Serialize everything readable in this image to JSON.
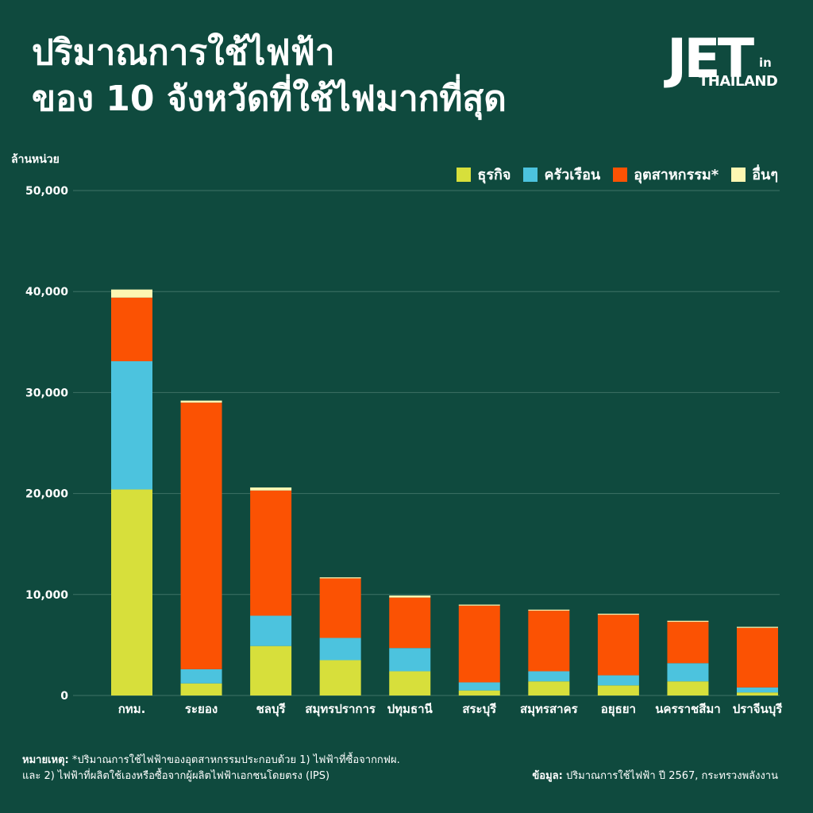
{
  "title": {
    "line1": "ปริมาณการใช้ไฟฟ้า",
    "line2": "ของ 10 จังหวัดที่ใช้ไฟมากที่สุด"
  },
  "logo": {
    "main": "JET",
    "in": "in",
    "sub": "THAILAND"
  },
  "colors": {
    "background": "#0f4a3e",
    "business": "#d7df3b",
    "household": "#4cc3de",
    "industry": "#fb5203",
    "other": "#fdf7b2",
    "grid": "#3f7266"
  },
  "chart_data": {
    "type": "bar",
    "stacked": true,
    "ylabel": "ล้านหน่วย",
    "ylim": [
      0,
      50000
    ],
    "yticks": [
      "0",
      "10,000",
      "20,000",
      "30,000",
      "40,000",
      "50,000"
    ],
    "ytick_values": [
      0,
      10000,
      20000,
      30000,
      40000,
      50000
    ],
    "grid": true,
    "legend_position": "top-right",
    "categories": [
      "กทม.",
      "ระยอง",
      "ชลบุรี",
      "สมุทรปราการ",
      "ปทุมธานี",
      "สระบุรี",
      "สมุทรสาคร",
      "อยุธยา",
      "นครราชสีมา",
      "ปราจีนบุรี"
    ],
    "series": [
      {
        "name": "ธุรกิจ",
        "color": "#d7df3b",
        "values": [
          20400,
          1200,
          4900,
          3500,
          2400,
          500,
          1400,
          1000,
          1400,
          300
        ]
      },
      {
        "name": "ครัวเรือน",
        "color": "#4cc3de",
        "values": [
          12700,
          1400,
          3000,
          2200,
          2300,
          800,
          1000,
          1000,
          1800,
          500
        ]
      },
      {
        "name": "อุตสาหกรรม*",
        "color": "#fb5203",
        "values": [
          6300,
          26400,
          12400,
          5900,
          5000,
          7600,
          6000,
          6000,
          4100,
          5900
        ]
      },
      {
        "name": "อื่นๆ",
        "color": "#fdf7b2",
        "values": [
          800,
          200,
          300,
          100,
          200,
          100,
          100,
          100,
          100,
          100
        ]
      }
    ]
  },
  "note": {
    "label": "หมายเหตุ:",
    "line1": " *ปริมาณการใช้ไฟฟ้าของอุตสาหกรรมประกอบด้วย 1) ไฟฟ้าที่ซื้อจากกฟผ.",
    "line2": "และ 2) ไฟฟ้าที่ผลิตใช้เองหรือซื้อจากผู้ผลิตไฟฟ้าเอกชนโดยตรง (IPS)"
  },
  "source": {
    "label": "ข้อมูล:",
    "text": " ปริมาณการใช้ไฟฟ้า ปี 2567, กระทรวงพลังงาน"
  }
}
